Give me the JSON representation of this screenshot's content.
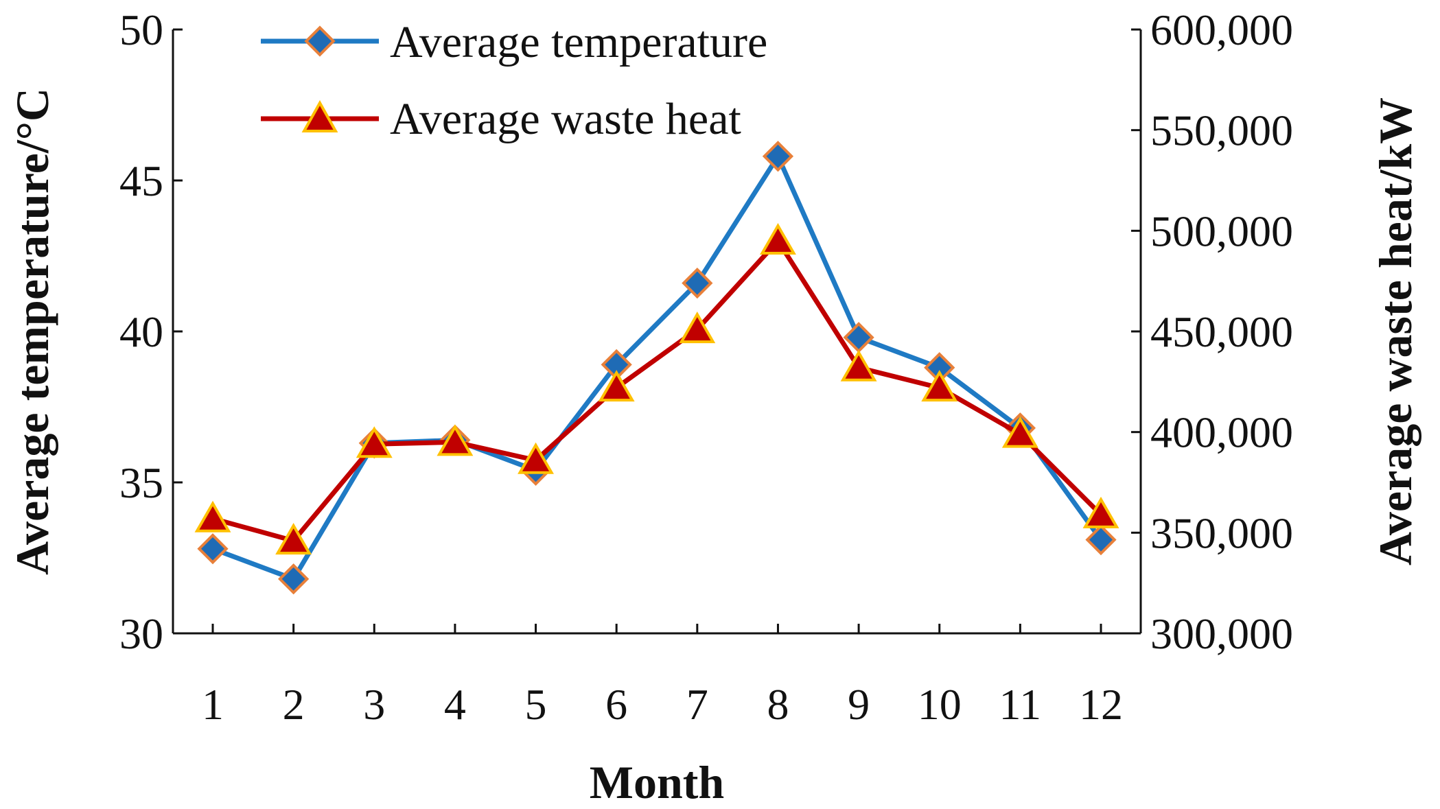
{
  "chart_data": {
    "type": "line",
    "xlabel": "Month",
    "ylabel_left": "Average temperature/°C",
    "ylabel_right": "Average waste heat/kW",
    "categories": [
      "1",
      "2",
      "3",
      "4",
      "5",
      "6",
      "7",
      "8",
      "9",
      "10",
      "11",
      "12"
    ],
    "y_left": {
      "range": [
        30,
        50
      ],
      "ticks": [
        30,
        35,
        40,
        45,
        50
      ],
      "tick_labels": [
        "30",
        "35",
        "40",
        "45",
        "50"
      ]
    },
    "y_right": {
      "range": [
        300000,
        600000
      ],
      "ticks": [
        300000,
        350000,
        400000,
        450000,
        500000,
        550000,
        600000
      ],
      "tick_labels": [
        "300,000",
        "350,000",
        "400,000",
        "450,000",
        "500,000",
        "550,000",
        "600,000"
      ]
    },
    "legend_position": "top-left",
    "series": [
      {
        "name": "Average temperature",
        "axis": "left",
        "marker": "diamond",
        "line_color": "#1f7ac4",
        "marker_fill": "#1f6bb5",
        "marker_edge": "#e8803a",
        "values": [
          32.8,
          31.8,
          36.3,
          36.4,
          35.4,
          38.9,
          41.6,
          45.8,
          39.8,
          38.8,
          36.8,
          33.1
        ]
      },
      {
        "name": "Average waste heat",
        "axis": "right",
        "marker": "triangle",
        "line_color": "#c00000",
        "marker_fill": "#c00000",
        "marker_edge": "#ffc000",
        "values": [
          357000,
          346000,
          394000,
          395000,
          386000,
          422000,
          451000,
          495000,
          432000,
          422000,
          399000,
          359000
        ]
      }
    ]
  }
}
